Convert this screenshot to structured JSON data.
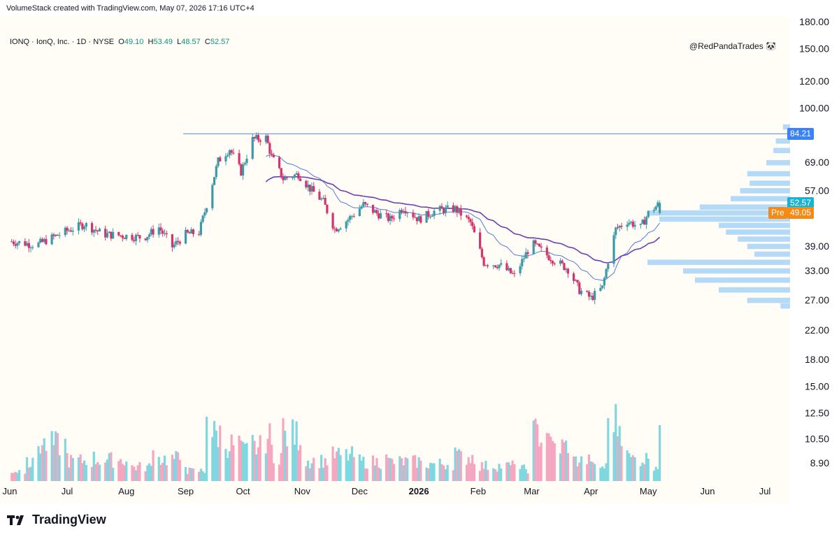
{
  "header": {
    "credit": "VolumeStack created with TradingView.com, May 07, 2026 17:16 UTC+4"
  },
  "legend": {
    "symbol": "IONQ · IonQ, Inc. · 1D · NYSE",
    "o_label": "O",
    "o_value": "49.10",
    "h_label": "H",
    "h_value": "53.49",
    "l_label": "L",
    "l_value": "48.57",
    "c_label": "C",
    "c_value": "52.57"
  },
  "watermark": "@RedPandaTrades 🐼",
  "footer": {
    "logo_text": "TradingView"
  },
  "colors": {
    "background": "#fffdf6",
    "up": "#26a69a",
    "down": "#ef5350",
    "up_volume": "#7fd8e0",
    "down_volume": "#f5a6c0",
    "candle_up": "#3b9aa8",
    "candle_down": "#d6336c",
    "ma_fast": "#4f7be8",
    "ma_slow": "#6b3fb6",
    "profile": "#a8d3f7",
    "resistance": "#4f8cf0",
    "last_tag": "#17b3d0",
    "pre_tag": "#f58a14",
    "level_tag": "#3b82f6"
  },
  "tags": {
    "level": "84.21",
    "last": "52.57",
    "pre_label": "Pre",
    "pre": "49.05"
  },
  "chart_data": {
    "type": "candlestick",
    "scale": "log",
    "y_ticks": [
      "180.00",
      "150.00",
      "120.00",
      "100.00",
      "84.21",
      "69.00",
      "57.00",
      "52.57",
      "49.05",
      "39.00",
      "33.00",
      "27.00",
      "22.00",
      "18.00",
      "15.00",
      "12.50",
      "10.50",
      "8.90"
    ],
    "y_tick_values": [
      180,
      150,
      120,
      100,
      84.21,
      69,
      57,
      52.57,
      49.05,
      39,
      33,
      27,
      22,
      18,
      15,
      12.5,
      10.5,
      8.9
    ],
    "x_ticks": [
      "Jun",
      "Jul",
      "Aug",
      "Sep",
      "Oct",
      "Nov",
      "Dec",
      "2026",
      "Feb",
      "Mar",
      "Apr",
      "May",
      "Jun",
      "Jul"
    ],
    "x_tick_dates": [
      "2025-06-01",
      "2025-07-01",
      "2025-08-01",
      "2025-09-01",
      "2025-10-01",
      "2025-11-01",
      "2025-12-01",
      "2026-01-01",
      "2026-02-01",
      "2026-03-01",
      "2026-04-01",
      "2026-05-01",
      "2026-06-01",
      "2026-07-01"
    ],
    "resistance_level": 84.21,
    "close_path": [
      [
        "2025-06-01",
        40.5
      ],
      [
        "2025-06-15",
        39.5
      ],
      [
        "2025-07-01",
        43.5
      ],
      [
        "2025-07-10",
        45.5
      ],
      [
        "2025-07-20",
        42.5
      ],
      [
        "2025-08-01",
        42.0
      ],
      [
        "2025-08-10",
        41.5
      ],
      [
        "2025-08-18",
        44.5
      ],
      [
        "2025-08-25",
        39.0
      ],
      [
        "2025-09-01",
        42.5
      ],
      [
        "2025-09-08",
        43.0
      ],
      [
        "2025-09-12",
        52.0
      ],
      [
        "2025-09-18",
        70.0
      ],
      [
        "2025-09-24",
        76.0
      ],
      [
        "2025-09-30",
        65.0
      ],
      [
        "2025-10-06",
        81.0
      ],
      [
        "2025-10-13",
        82.0
      ],
      [
        "2025-10-16",
        72.0
      ],
      [
        "2025-10-22",
        62.0
      ],
      [
        "2025-10-30",
        64.0
      ],
      [
        "2025-11-05",
        58.0
      ],
      [
        "2025-11-12",
        53.0
      ],
      [
        "2025-11-18",
        44.0
      ],
      [
        "2025-11-25",
        47.0
      ],
      [
        "2025-12-03",
        52.0
      ],
      [
        "2025-12-10",
        49.0
      ],
      [
        "2025-12-17",
        47.0
      ],
      [
        "2025-12-24",
        51.0
      ],
      [
        "2026-01-01",
        47.0
      ],
      [
        "2026-01-10",
        50.0
      ],
      [
        "2026-01-20",
        50.5
      ],
      [
        "2026-01-28",
        46.0
      ],
      [
        "2026-02-04",
        35.0
      ],
      [
        "2026-02-12",
        34.5
      ],
      [
        "2026-02-20",
        32.0
      ],
      [
        "2026-03-01",
        40.0
      ],
      [
        "2026-03-10",
        36.5
      ],
      [
        "2026-03-20",
        33.5
      ],
      [
        "2026-03-26",
        29.0
      ],
      [
        "2026-04-01",
        27.5
      ],
      [
        "2026-04-07",
        29.5
      ],
      [
        "2026-04-10",
        35.5
      ],
      [
        "2026-04-14",
        44.0
      ],
      [
        "2026-04-20",
        46.5
      ],
      [
        "2026-04-27",
        44.5
      ],
      [
        "2026-05-01",
        49.0
      ],
      [
        "2026-05-07",
        52.57
      ]
    ],
    "profile_levels": [
      [
        88,
        0.03
      ],
      [
        80,
        0.06
      ],
      [
        75,
        0.07
      ],
      [
        69,
        0.1
      ],
      [
        64,
        0.18
      ],
      [
        60,
        0.17
      ],
      [
        57,
        0.21
      ],
      [
        54,
        0.25
      ],
      [
        51,
        0.38
      ],
      [
        49,
        0.6
      ],
      [
        47,
        0.55
      ],
      [
        45,
        0.3
      ],
      [
        43,
        0.27
      ],
      [
        41,
        0.22
      ],
      [
        39,
        0.18
      ],
      [
        37,
        0.15
      ],
      [
        35,
        0.6
      ],
      [
        33,
        0.45
      ],
      [
        31,
        0.4
      ],
      [
        29,
        0.3
      ],
      [
        27,
        0.18
      ],
      [
        26,
        0.04
      ]
    ],
    "volume_ylim": [
      0,
      1
    ],
    "volume": [
      [
        "2025-06-01",
        0.1,
        "down"
      ],
      [
        "2025-06-10",
        0.17,
        "down"
      ],
      [
        "2025-06-15",
        0.36,
        "down"
      ],
      [
        "2025-07-01",
        0.2,
        "up"
      ],
      [
        "2025-07-15",
        0.21,
        "up"
      ],
      [
        "2025-08-01",
        0.14,
        "down"
      ],
      [
        "2025-08-15",
        0.22,
        "up"
      ],
      [
        "2025-09-01",
        0.1,
        "up"
      ],
      [
        "2025-09-12",
        0.46,
        "up"
      ],
      [
        "2025-09-20",
        0.36,
        "up"
      ],
      [
        "2025-09-30",
        0.29,
        "down"
      ],
      [
        "2025-10-06",
        0.33,
        "up"
      ],
      [
        "2025-10-12",
        0.43,
        "down"
      ],
      [
        "2025-10-16",
        0.26,
        "down"
      ],
      [
        "2025-10-22",
        0.45,
        "down"
      ],
      [
        "2025-11-01",
        0.2,
        "down"
      ],
      [
        "2025-11-15",
        0.25,
        "down"
      ],
      [
        "2025-12-01",
        0.19,
        "up"
      ],
      [
        "2025-12-15",
        0.19,
        "down"
      ],
      [
        "2026-01-01",
        0.17,
        "up"
      ],
      [
        "2026-01-20",
        0.24,
        "down"
      ],
      [
        "2026-02-01",
        0.15,
        "down"
      ],
      [
        "2026-02-20",
        0.12,
        "up"
      ],
      [
        "2026-03-01",
        0.47,
        "up"
      ],
      [
        "2026-03-10",
        0.34,
        "down"
      ],
      [
        "2026-03-20",
        0.2,
        "down"
      ],
      [
        "2026-04-01",
        0.14,
        "down"
      ],
      [
        "2026-04-10",
        0.45,
        "up"
      ],
      [
        "2026-04-12",
        0.67,
        "up"
      ],
      [
        "2026-04-14",
        0.55,
        "up"
      ],
      [
        "2026-04-20",
        0.22,
        "down"
      ],
      [
        "2026-05-01",
        0.16,
        "down"
      ],
      [
        "2026-05-07",
        0.4,
        "up"
      ]
    ]
  }
}
